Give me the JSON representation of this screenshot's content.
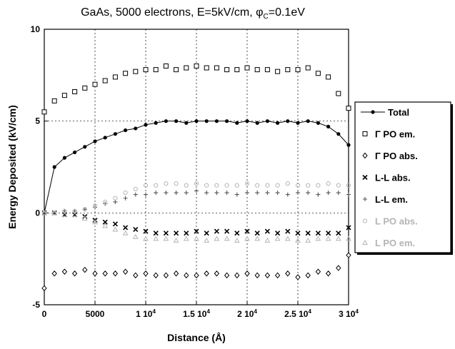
{
  "chart_data": {
    "type": "scatter",
    "title": "GaAs, 5000 electrons, E=5kV/cm, φ",
    "title_sub": "C",
    "title_tail": "=0.1eV",
    "xlabel": "Distance (Å)",
    "ylabel": "Energy Deposited  (kV/cm)",
    "xlim": [
      0,
      30000
    ],
    "ylim": [
      -5,
      10
    ],
    "grid": true,
    "legend_position": "right",
    "x_ticks": [
      {
        "value": 0,
        "label": "0"
      },
      {
        "value": 5000,
        "label": "5000"
      },
      {
        "value": 10000,
        "label": "1 10",
        "exp": "4"
      },
      {
        "value": 15000,
        "label": "1.5 10",
        "exp": "4"
      },
      {
        "value": 20000,
        "label": "2 10",
        "exp": "4"
      },
      {
        "value": 25000,
        "label": "2.5 10",
        "exp": "4"
      },
      {
        "value": 30000,
        "label": "3 10",
        "exp": "4"
      }
    ],
    "y_ticks": [
      {
        "value": -5,
        "label": "-5"
      },
      {
        "value": 0,
        "label": "0"
      },
      {
        "value": 5,
        "label": "5"
      },
      {
        "value": 10,
        "label": "10"
      }
    ],
    "x": [
      0,
      1000,
      2000,
      3000,
      4000,
      5000,
      6000,
      7000,
      8000,
      9000,
      10000,
      11000,
      12000,
      13000,
      14000,
      15000,
      16000,
      17000,
      18000,
      19000,
      20000,
      21000,
      22000,
      23000,
      24000,
      25000,
      26000,
      27000,
      28000,
      29000,
      30000
    ],
    "series": [
      {
        "name": "Total",
        "marker": "dot-line",
        "color": "#000000",
        "values": [
          0.0,
          2.5,
          3.0,
          3.3,
          3.6,
          3.9,
          4.1,
          4.3,
          4.5,
          4.6,
          4.8,
          4.9,
          5.0,
          5.0,
          4.9,
          5.0,
          5.0,
          5.0,
          5.0,
          4.9,
          5.0,
          4.9,
          5.0,
          4.9,
          5.0,
          4.9,
          5.0,
          4.9,
          4.7,
          4.3,
          3.7
        ]
      },
      {
        "name": "Γ PO em.",
        "marker": "square",
        "color": "#000000",
        "values": [
          5.5,
          6.1,
          6.4,
          6.6,
          6.8,
          7.0,
          7.2,
          7.4,
          7.6,
          7.7,
          7.8,
          7.8,
          8.0,
          7.8,
          7.9,
          8.0,
          7.9,
          7.9,
          7.8,
          7.8,
          7.9,
          7.8,
          7.8,
          7.7,
          7.8,
          7.8,
          7.9,
          7.6,
          7.4,
          6.5,
          5.7
        ]
      },
      {
        "name": "Γ PO abs.",
        "marker": "diamond",
        "color": "#000000",
        "values": [
          -4.1,
          -3.3,
          -3.2,
          -3.3,
          -3.1,
          -3.3,
          -3.3,
          -3.3,
          -3.2,
          -3.4,
          -3.3,
          -3.4,
          -3.4,
          -3.3,
          -3.4,
          -3.4,
          -3.3,
          -3.3,
          -3.4,
          -3.4,
          -3.3,
          -3.4,
          -3.4,
          -3.4,
          -3.3,
          -3.5,
          -3.4,
          -3.2,
          -3.3,
          -3.0,
          -2.3
        ]
      },
      {
        "name": "L-L abs.",
        "marker": "x",
        "color": "#000000",
        "values": [
          0.0,
          0.0,
          -0.1,
          -0.1,
          -0.2,
          -0.4,
          -0.5,
          -0.6,
          -0.8,
          -0.9,
          -1.0,
          -1.1,
          -1.1,
          -1.1,
          -1.1,
          -1.0,
          -1.1,
          -1.0,
          -1.0,
          -1.1,
          -1.0,
          -1.1,
          -1.0,
          -1.1,
          -1.0,
          -1.1,
          -1.1,
          -1.1,
          -1.1,
          -1.1,
          -0.8
        ]
      },
      {
        "name": "L-L em.",
        "marker": "plus",
        "color": "#555555",
        "values": [
          0.0,
          0.0,
          0.1,
          0.1,
          0.2,
          0.3,
          0.5,
          0.6,
          0.8,
          1.0,
          1.0,
          1.1,
          1.1,
          1.1,
          1.1,
          1.2,
          1.1,
          1.1,
          1.1,
          1.0,
          1.1,
          1.1,
          1.1,
          1.1,
          1.0,
          1.1,
          1.1,
          1.0,
          1.1,
          1.1,
          1.0
        ]
      },
      {
        "name": "L PO abs.",
        "marker": "circle",
        "color": "#b4b4b4",
        "values": [
          0.0,
          0.0,
          0.1,
          0.1,
          0.2,
          0.4,
          0.6,
          0.8,
          1.1,
          1.3,
          1.5,
          1.5,
          1.6,
          1.6,
          1.5,
          1.6,
          1.5,
          1.5,
          1.5,
          1.5,
          1.6,
          1.5,
          1.5,
          1.5,
          1.6,
          1.5,
          1.5,
          1.5,
          1.6,
          1.5,
          1.5
        ]
      },
      {
        "name": "L PO em.",
        "marker": "triangle",
        "color": "#b4b4b4",
        "values": [
          0.0,
          0.0,
          -0.1,
          -0.1,
          -0.3,
          -0.5,
          -0.7,
          -0.9,
          -1.1,
          -1.3,
          -1.4,
          -1.4,
          -1.4,
          -1.5,
          -1.4,
          -1.4,
          -1.5,
          -1.4,
          -1.4,
          -1.5,
          -1.4,
          -1.4,
          -1.5,
          -1.4,
          -1.4,
          -1.5,
          -1.5,
          -1.4,
          -1.4,
          -1.4,
          -1.4
        ]
      }
    ]
  }
}
